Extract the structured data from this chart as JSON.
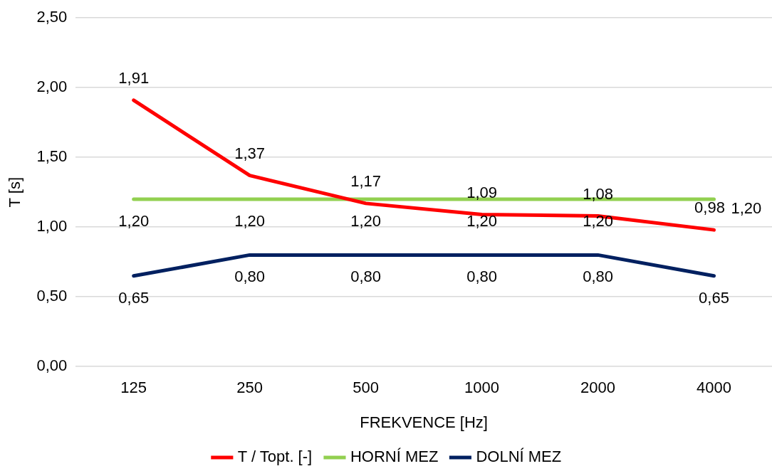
{
  "chart_data": {
    "type": "line",
    "xlabel": "FREKVENCE [Hz]",
    "ylabel": "T [s]",
    "categories": [
      "125",
      "250",
      "500",
      "1000",
      "2000",
      "4000"
    ],
    "series": [
      {
        "name": "T / Topt. [-]",
        "color": "#ff0000",
        "values": [
          1.91,
          1.37,
          1.17,
          1.09,
          1.08,
          0.98
        ],
        "value_labels": [
          "1,91",
          "1,37",
          "1,17",
          "1,09",
          "1,08",
          "0,98"
        ]
      },
      {
        "name": "HORNÍ MEZ",
        "color": "#92d050",
        "values": [
          1.2,
          1.2,
          1.2,
          1.2,
          1.2,
          1.2
        ],
        "value_labels": [
          "1,20",
          "1,20",
          "1,20",
          "1,20",
          "1,20",
          "1,20"
        ]
      },
      {
        "name": "DOLNÍ MEZ",
        "color": "#002060",
        "values": [
          0.65,
          0.8,
          0.8,
          0.8,
          0.8,
          0.65
        ],
        "value_labels": [
          "0,65",
          "0,80",
          "0,80",
          "0,80",
          "0,80",
          "0,65"
        ]
      }
    ],
    "ylim": [
      0,
      2.5
    ],
    "yticks": [
      {
        "value": 0,
        "label": "0,00"
      },
      {
        "value": 0.5,
        "label": "0,50"
      },
      {
        "value": 1,
        "label": "1,00"
      },
      {
        "value": 1.5,
        "label": "1,50"
      },
      {
        "value": 2,
        "label": "2,00"
      },
      {
        "value": 2.5,
        "label": "2,50"
      }
    ],
    "grid": "y",
    "legend": "bottom",
    "marker": "none",
    "line_style": "solid"
  }
}
